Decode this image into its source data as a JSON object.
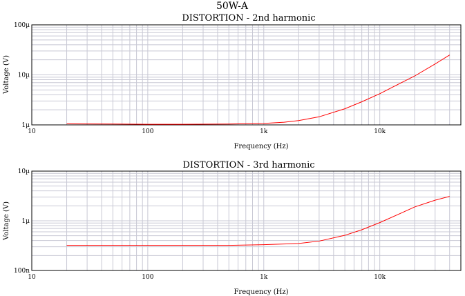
{
  "title": "50W-A",
  "chart_data": [
    {
      "type": "line",
      "title": "DISTORTION - 2nd harmonic",
      "xlabel": "Frequency (Hz)",
      "ylabel": "Voltage (V)",
      "x_scale": "log",
      "y_scale": "log",
      "xlim": [
        10,
        50000
      ],
      "ylim": [
        1e-06,
        0.0001
      ],
      "x_ticks": [
        10,
        100,
        1000,
        10000
      ],
      "x_tick_labels": [
        "10",
        "100",
        "1k",
        "10k"
      ],
      "y_ticks": [
        1e-06,
        1e-05,
        0.0001
      ],
      "y_tick_labels": [
        "1µ",
        "10µ",
        "100µ"
      ],
      "grid": true,
      "series_color": "#ff0000",
      "series": [
        {
          "x": [
            20,
            50,
            100,
            200,
            500,
            1000,
            1500,
            2000,
            3000,
            5000,
            7000,
            10000,
            15000,
            20000,
            30000,
            40000
          ],
          "values": [
            1.05e-06,
            1.04e-06,
            1.03e-06,
            1.03e-06,
            1.04e-06,
            1.07e-06,
            1.13e-06,
            1.22e-06,
            1.45e-06,
            2.1e-06,
            2.9e-06,
            4.2e-06,
            6.8e-06,
            9.5e-06,
            1.65e-05,
            2.5e-05
          ]
        }
      ]
    },
    {
      "type": "line",
      "title": "DISTORTION - 3rd harmonic",
      "xlabel": "Frequency (Hz)",
      "ylabel": "Voltage (V)",
      "x_scale": "log",
      "y_scale": "log",
      "xlim": [
        10,
        50000
      ],
      "ylim": [
        1e-07,
        1e-05
      ],
      "x_ticks": [
        10,
        100,
        1000,
        10000
      ],
      "x_tick_labels": [
        "10",
        "100",
        "1k",
        "10k"
      ],
      "y_ticks": [
        1e-07,
        1e-06,
        1e-05
      ],
      "y_tick_labels": [
        "100n",
        "1µ",
        "10µ"
      ],
      "grid": true,
      "series_color": "#ff0000",
      "series": [
        {
          "x": [
            20,
            50,
            100,
            200,
            500,
            1000,
            2000,
            3000,
            5000,
            7000,
            10000,
            15000,
            20000,
            30000,
            40000
          ],
          "values": [
            3.2e-07,
            3.2e-07,
            3.2e-07,
            3.2e-07,
            3.2e-07,
            3.3e-07,
            3.5e-07,
            3.9e-07,
            5.1e-07,
            6.6e-07,
            9.2e-07,
            1.4e-06,
            1.9e-06,
            2.6e-06,
            3.1e-06
          ]
        }
      ]
    }
  ]
}
